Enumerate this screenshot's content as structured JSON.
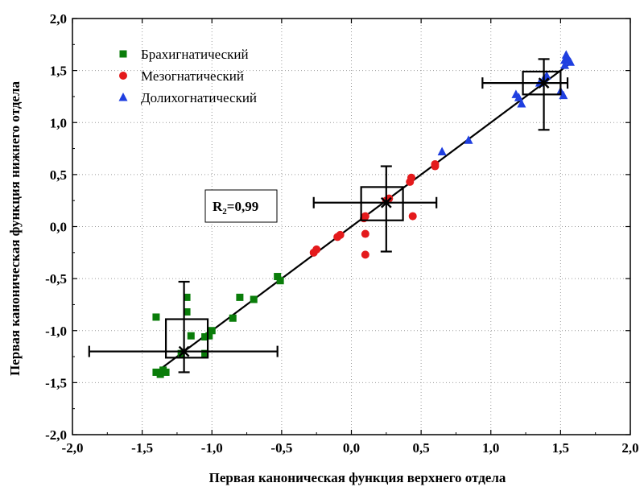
{
  "chart_data": {
    "type": "scatter",
    "xlabel": "Первая каноническая функция верхнего отдела",
    "ylabel": "Первая каноническая функция нижнего отдела",
    "xlim": [
      -2.0,
      2.0
    ],
    "ylim": [
      -2.0,
      2.0
    ],
    "x_ticks": [
      "-2,0",
      "-1,5",
      "-1,0",
      "-0,5",
      "0,0",
      "0,5",
      "1,0",
      "1,5",
      "2,0"
    ],
    "y_ticks": [
      "-2,0",
      "-1,5",
      "-1,0",
      "-0,5",
      "0,0",
      "0,5",
      "1,0",
      "1,5",
      "2,0"
    ],
    "grid": true,
    "legend_position": "top-left",
    "annotation": {
      "main": "R",
      "sub": "2",
      "value": "=0,99"
    },
    "series": [
      {
        "name": "Брахигнатический",
        "marker": "square",
        "color": "#0a7d0a",
        "points": [
          [
            -1.4,
            -0.87
          ],
          [
            -1.4,
            -1.4
          ],
          [
            -1.37,
            -1.42
          ],
          [
            -1.35,
            -1.38
          ],
          [
            -1.33,
            -1.4
          ],
          [
            -1.22,
            -1.22
          ],
          [
            -1.18,
            -0.82
          ],
          [
            -1.18,
            -0.68
          ],
          [
            -1.15,
            -1.05
          ],
          [
            -1.05,
            -1.22
          ],
          [
            -1.05,
            -1.06
          ],
          [
            -1.02,
            -1.05
          ],
          [
            -1.0,
            -1.0
          ],
          [
            -0.85,
            -0.88
          ],
          [
            -0.8,
            -0.68
          ],
          [
            -0.7,
            -0.7
          ],
          [
            -0.53,
            -0.48
          ],
          [
            -0.51,
            -0.52
          ]
        ]
      },
      {
        "name": "Мезогнатический",
        "marker": "circle",
        "color": "#e41a1c",
        "points": [
          [
            -0.27,
            -0.25
          ],
          [
            -0.25,
            -0.22
          ],
          [
            -0.1,
            -0.1
          ],
          [
            -0.08,
            -0.08
          ],
          [
            0.09,
            0.08
          ],
          [
            0.1,
            0.1
          ],
          [
            0.1,
            -0.07
          ],
          [
            0.1,
            -0.27
          ],
          [
            0.25,
            0.25
          ],
          [
            0.27,
            0.27
          ],
          [
            0.42,
            0.43
          ],
          [
            0.43,
            0.47
          ],
          [
            0.44,
            0.1
          ],
          [
            0.6,
            0.6
          ],
          [
            0.6,
            0.58
          ]
        ]
      },
      {
        "name": "Долихогнатический",
        "marker": "triangle",
        "color": "#1f3fe0",
        "points": [
          [
            0.65,
            0.72
          ],
          [
            0.84,
            0.83
          ],
          [
            1.18,
            1.27
          ],
          [
            1.2,
            1.24
          ],
          [
            1.22,
            1.18
          ],
          [
            1.35,
            1.38
          ],
          [
            1.38,
            1.42
          ],
          [
            1.4,
            1.45
          ],
          [
            1.5,
            1.3
          ],
          [
            1.52,
            1.26
          ],
          [
            1.53,
            1.6
          ],
          [
            1.54,
            1.65
          ],
          [
            1.55,
            1.62
          ],
          [
            1.57,
            1.58
          ],
          [
            1.53,
            1.55
          ]
        ]
      }
    ],
    "regression_line": {
      "x": [
        -1.42,
        1.57
      ],
      "y": [
        -1.42,
        1.57
      ]
    },
    "group_boxes": [
      {
        "center": [
          -1.2,
          -1.2
        ],
        "box_x": [
          -1.33,
          -1.03
        ],
        "box_y": [
          -1.26,
          -0.89
        ],
        "err_x": [
          -1.88,
          -0.53
        ],
        "err_y": [
          -1.4,
          -0.53
        ]
      },
      {
        "center": [
          0.25,
          0.23
        ],
        "box_x": [
          0.07,
          0.37
        ],
        "box_y": [
          0.06,
          0.38
        ],
        "err_x": [
          -0.27,
          0.61
        ],
        "err_y": [
          -0.24,
          0.58
        ]
      },
      {
        "center": [
          1.38,
          1.38
        ],
        "box_x": [
          1.23,
          1.5
        ],
        "box_y": [
          1.27,
          1.49
        ],
        "err_x": [
          0.94,
          1.55
        ],
        "err_y": [
          0.93,
          1.61
        ]
      }
    ]
  }
}
